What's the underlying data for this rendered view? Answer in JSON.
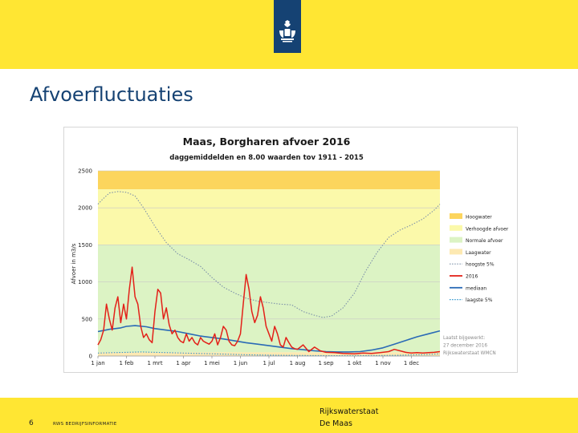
{
  "slide": {
    "title": "Afvoerfluctuaties",
    "page_number": "6",
    "footer_label": "RWS BEDRIJFSINFORMATIE",
    "organization": "Rijkswaterstaat",
    "subject": "De Maas"
  },
  "colors": {
    "brand_yellow": "#ffe633",
    "logo_blue": "#154273",
    "band_hoogwater": "#fcd55d",
    "band_verhoogd": "#fbf9aa",
    "band_normaal": "#dcf3c4",
    "band_laagwater": "#fde9b2",
    "line_2016": "#e32119",
    "line_mediaan": "#2a6ab6",
    "line_hoogste": "#7d91a9",
    "line_laagste": "#2f95cd"
  },
  "chart_data": {
    "type": "line",
    "title": "Maas, Borgharen afvoer 2016",
    "subtitle": "daggemiddelden en 8.00 waarden tov 1911 - 2015",
    "ylabel": "Afvoer in m3/s",
    "xlabel": "",
    "ylim": [
      0,
      2500
    ],
    "yticks": [
      0,
      500,
      1000,
      1500,
      2000,
      2500
    ],
    "xlim": [
      0,
      12
    ],
    "months": [
      "1 jan",
      "1 feb",
      "1 mrt",
      "1 apr",
      "1 mei",
      "1 jun",
      "1 jul",
      "1 aug",
      "1 sep",
      "1 okt",
      "1 nov",
      "1 dec"
    ],
    "bands": [
      {
        "name": "Hoogwater",
        "from": 2250,
        "to": 2500
      },
      {
        "name": "Verhoogde afvoer",
        "from": 1500,
        "to": 2250
      },
      {
        "name": "Normale afvoer",
        "from": 50,
        "to": 1500
      },
      {
        "name": "Laagwater",
        "from": 0,
        "to": 50
      }
    ],
    "legend": [
      {
        "label": "Hoogwater",
        "kind": "box",
        "color": "#fcd55d"
      },
      {
        "label": "Verhoogde afvoer",
        "kind": "box",
        "color": "#fbf9aa"
      },
      {
        "label": "Normale afvoer",
        "kind": "box",
        "color": "#dcf3c4"
      },
      {
        "label": "Laagwater",
        "kind": "box",
        "color": "#fde9b2"
      },
      {
        "label": "hoogste 5%",
        "kind": "dotted",
        "color": "#7d91a9"
      },
      {
        "label": "2016",
        "kind": "line",
        "color": "#e32119"
      },
      {
        "label": "mediaan",
        "kind": "line",
        "color": "#2a6ab6"
      },
      {
        "label": "laagste 5%",
        "kind": "dotted",
        "color": "#2f95cd"
      }
    ],
    "legend_position": "right",
    "annotation": [
      "Laatst bijgewerkt:",
      "27 december 2016",
      "Rijkswaterstaat WMCN"
    ],
    "series": [
      {
        "name": "hoogste 5%",
        "x": [
          0,
          0.15,
          0.4,
          0.7,
          1.0,
          1.3,
          1.6,
          2.0,
          2.4,
          2.8,
          3.2,
          3.6,
          4.0,
          4.4,
          4.8,
          5.2,
          5.6,
          6.0,
          6.4,
          6.8,
          7.2,
          7.6,
          7.9,
          8.2,
          8.6,
          9.0,
          9.4,
          9.8,
          10.2,
          10.6,
          11.0,
          11.4,
          11.8,
          12.0
        ],
        "y": [
          2050,
          2110,
          2200,
          2220,
          2210,
          2160,
          2000,
          1750,
          1530,
          1380,
          1300,
          1210,
          1060,
          930,
          850,
          780,
          740,
          720,
          700,
          690,
          600,
          550,
          520,
          540,
          650,
          850,
          1150,
          1400,
          1600,
          1700,
          1770,
          1850,
          1970,
          2050
        ]
      },
      {
        "name": "mediaan",
        "x": [
          0,
          0.4,
          0.8,
          1.0,
          1.3,
          1.7,
          2.0,
          2.4,
          2.8,
          3.2,
          3.6,
          4.0,
          4.4,
          4.8,
          5.2,
          5.6,
          6.0,
          6.4,
          6.8,
          7.2,
          7.6,
          8.0,
          8.4,
          8.8,
          9.2,
          9.6,
          10.0,
          10.4,
          10.8,
          11.2,
          11.6,
          12.0
        ],
        "y": [
          330,
          360,
          380,
          400,
          410,
          395,
          370,
          350,
          330,
          300,
          270,
          250,
          230,
          205,
          180,
          160,
          140,
          120,
          100,
          85,
          70,
          60,
          55,
          55,
          60,
          80,
          110,
          160,
          210,
          260,
          300,
          340
        ]
      },
      {
        "name": "laagste 5%",
        "x": [
          0,
          0.5,
          1.0,
          1.5,
          2.0,
          2.5,
          3.0,
          3.5,
          4.0,
          4.5,
          5.0,
          5.5,
          6.0,
          6.5,
          7.0,
          7.5,
          8.0,
          8.5,
          9.0,
          9.5,
          10.0,
          10.5,
          11.0,
          11.5,
          12.0
        ],
        "y": [
          40,
          45,
          50,
          55,
          50,
          45,
          40,
          35,
          30,
          25,
          20,
          15,
          12,
          10,
          8,
          6,
          5,
          5,
          5,
          6,
          8,
          10,
          15,
          20,
          30
        ]
      },
      {
        "name": "2016",
        "x": [
          0,
          0.1,
          0.2,
          0.3,
          0.4,
          0.5,
          0.6,
          0.7,
          0.8,
          0.9,
          1.0,
          1.1,
          1.2,
          1.3,
          1.4,
          1.5,
          1.6,
          1.7,
          1.8,
          1.9,
          2.0,
          2.1,
          2.2,
          2.3,
          2.4,
          2.5,
          2.6,
          2.7,
          2.8,
          2.9,
          3.0,
          3.1,
          3.2,
          3.3,
          3.4,
          3.5,
          3.6,
          3.7,
          3.8,
          3.9,
          4.0,
          4.1,
          4.2,
          4.3,
          4.4,
          4.5,
          4.6,
          4.7,
          4.8,
          4.9,
          5.0,
          5.1,
          5.2,
          5.3,
          5.4,
          5.5,
          5.6,
          5.7,
          5.8,
          5.9,
          6.0,
          6.1,
          6.2,
          6.3,
          6.4,
          6.5,
          6.6,
          6.7,
          6.8,
          6.9,
          7.0,
          7.2,
          7.4,
          7.6,
          7.8,
          8.0,
          8.3,
          8.6,
          9.0,
          9.3,
          9.6,
          9.9,
          10.2,
          10.4,
          10.6,
          10.8,
          11.0,
          11.2,
          11.4,
          11.6,
          11.8,
          12.0
        ],
        "y": [
          150,
          220,
          350,
          700,
          500,
          350,
          650,
          800,
          450,
          700,
          500,
          900,
          1200,
          800,
          700,
          400,
          250,
          300,
          220,
          180,
          600,
          900,
          850,
          500,
          650,
          420,
          300,
          350,
          250,
          200,
          180,
          300,
          200,
          250,
          180,
          150,
          250,
          200,
          180,
          160,
          200,
          300,
          150,
          250,
          400,
          350,
          200,
          150,
          140,
          200,
          300,
          700,
          1100,
          900,
          600,
          450,
          550,
          800,
          650,
          400,
          300,
          200,
          400,
          300,
          150,
          120,
          250,
          180,
          120,
          100,
          90,
          150,
          60,
          120,
          70,
          50,
          45,
          35,
          30,
          40,
          35,
          45,
          60,
          90,
          70,
          50,
          40,
          45,
          40,
          45,
          50,
          60
        ]
      }
    ]
  }
}
